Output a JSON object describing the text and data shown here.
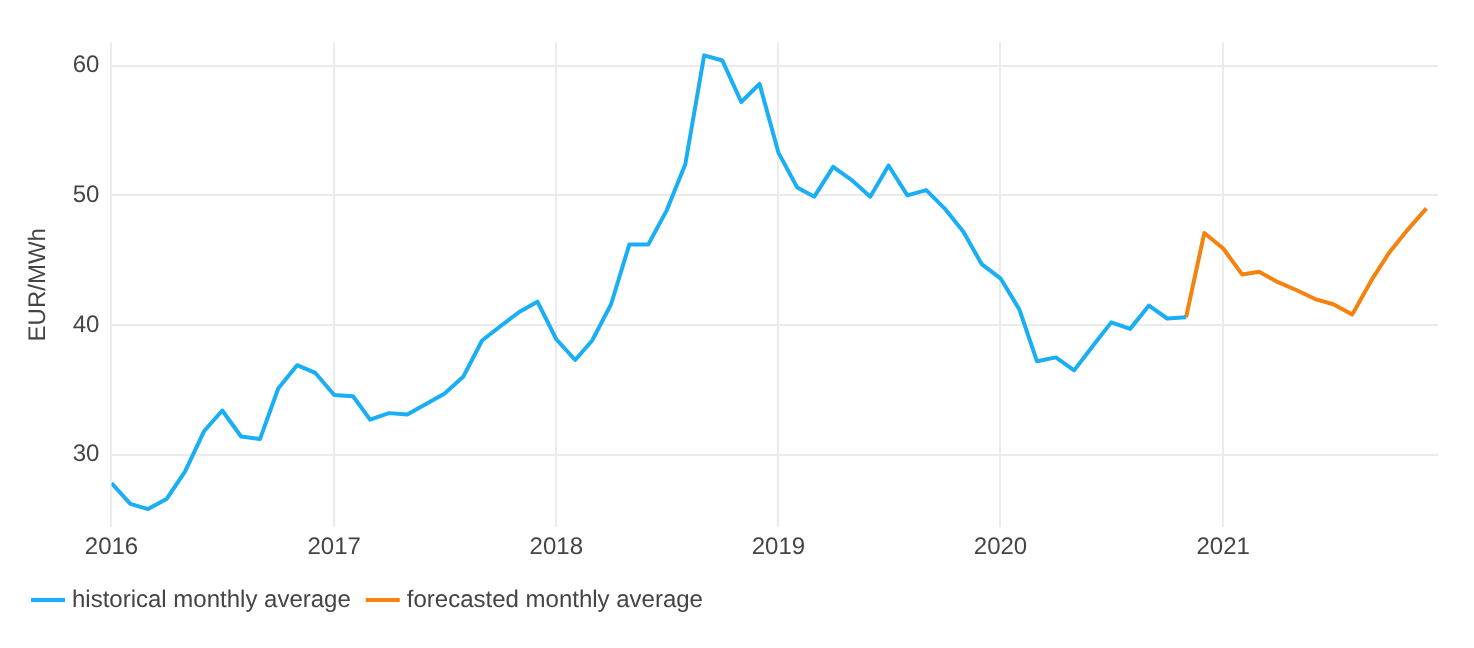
{
  "chart_data": {
    "type": "line",
    "ylabel": "EUR/MWh",
    "xlim": [
      "2016-01",
      "2021-12-20"
    ],
    "xticks": [
      "2016",
      "2017",
      "2018",
      "2019",
      "2020",
      "2021"
    ],
    "ylim": [
      24.4,
      61.8
    ],
    "yticks": [
      30,
      40,
      50,
      60
    ],
    "grid": true,
    "legend": "bottom left",
    "marker": "none",
    "line_style": "solid",
    "series": [
      {
        "name": "historical monthly average",
        "color": "#1aaef5",
        "x": [
          "2016-01",
          "2016-02",
          "2016-03",
          "2016-04",
          "2016-05",
          "2016-06",
          "2016-07",
          "2016-08",
          "2016-09",
          "2016-10",
          "2016-11",
          "2016-12",
          "2017-01",
          "2017-02",
          "2017-03",
          "2017-04",
          "2017-05",
          "2017-06",
          "2017-07",
          "2017-08",
          "2017-09",
          "2017-10",
          "2017-11",
          "2017-12",
          "2018-01",
          "2018-02",
          "2018-03",
          "2018-04",
          "2018-05",
          "2018-06",
          "2018-07",
          "2018-08",
          "2018-09",
          "2018-10",
          "2018-11",
          "2018-12",
          "2019-01",
          "2019-02",
          "2019-03",
          "2019-04",
          "2019-05",
          "2019-06",
          "2019-07",
          "2019-08",
          "2019-09",
          "2019-10",
          "2019-11",
          "2019-12",
          "2020-01",
          "2020-02",
          "2020-03",
          "2020-04",
          "2020-05",
          "2020-06",
          "2020-07",
          "2020-08",
          "2020-09",
          "2020-10",
          "2020-11"
        ],
        "values": [
          27.8,
          26.2,
          25.8,
          26.6,
          28.7,
          31.8,
          33.4,
          31.4,
          31.2,
          35.1,
          36.9,
          36.3,
          34.6,
          34.5,
          32.7,
          33.2,
          33.1,
          33.9,
          34.7,
          36.0,
          38.8,
          39.9,
          41.0,
          41.8,
          38.9,
          37.3,
          38.8,
          41.6,
          46.2,
          46.2,
          48.8,
          52.4,
          60.8,
          60.4,
          57.2,
          58.6,
          53.3,
          50.6,
          49.9,
          52.2,
          51.2,
          49.9,
          52.3,
          50.0,
          50.4,
          49.0,
          47.2,
          44.7,
          43.6,
          41.2,
          37.2,
          37.5,
          36.5,
          38.4,
          40.2,
          39.7,
          41.5,
          40.5,
          40.6
        ]
      },
      {
        "name": "forecasted monthly average",
        "color": "#f5820d",
        "x": [
          "2020-11",
          "2020-12",
          "2021-01",
          "2021-02",
          "2021-03",
          "2021-04",
          "2021-05",
          "2021-06",
          "2021-07",
          "2021-08",
          "2021-09",
          "2021-10",
          "2021-11",
          "2021-12"
        ],
        "values": [
          40.6,
          47.1,
          45.9,
          43.9,
          44.1,
          43.3,
          42.7,
          42.0,
          41.6,
          40.8,
          43.4,
          45.6,
          47.4,
          49.0
        ]
      }
    ]
  }
}
